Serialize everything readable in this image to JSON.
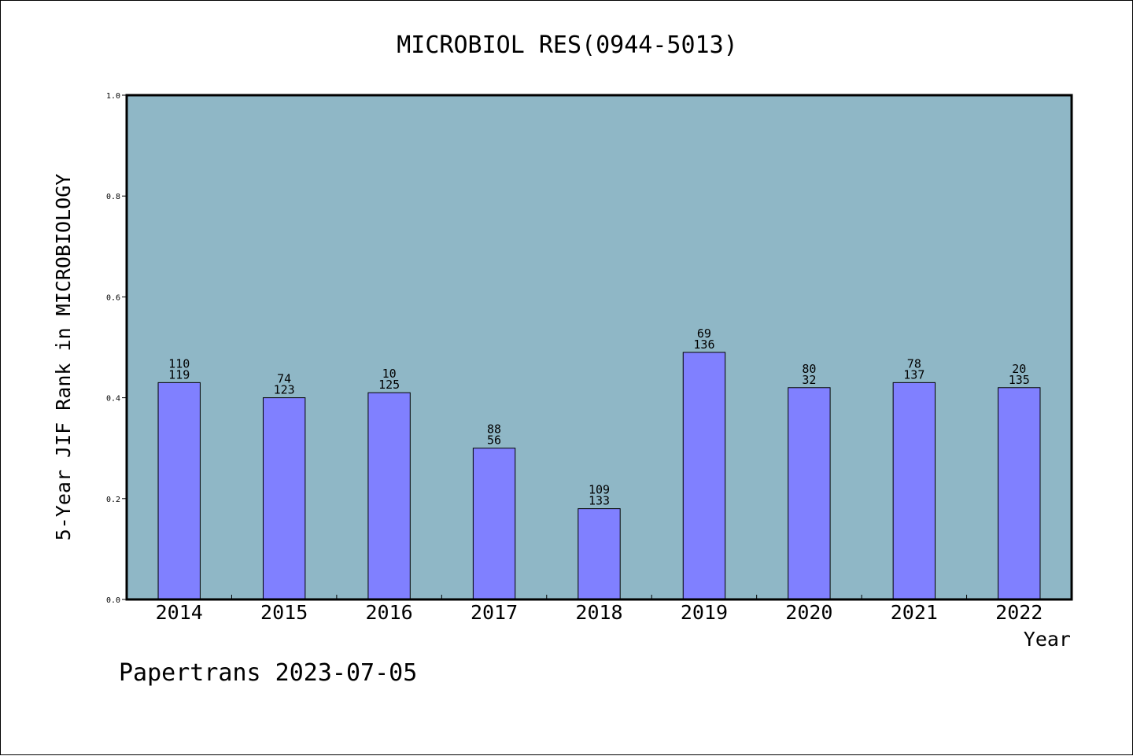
{
  "chart_data": {
    "type": "bar",
    "title": "MICROBIOL RES(0944-5013)",
    "xlabel": "Year",
    "ylabel": "5-Year JIF Rank in MICROBIOLOGY",
    "categories": [
      "2014",
      "2015",
      "2016",
      "2017",
      "2018",
      "2019",
      "2020",
      "2021",
      "2022"
    ],
    "values": [
      0.43,
      0.4,
      0.41,
      0.3,
      0.18,
      0.49,
      0.42,
      0.43,
      0.42
    ],
    "label_top": [
      "110",
      "74",
      "10",
      "88",
      "109",
      "69",
      "80",
      "78",
      "20"
    ],
    "label_bottom": [
      "119",
      "123",
      "125",
      "56",
      "133",
      "136",
      "32",
      "137",
      "135"
    ],
    "ylim": [
      0,
      1.0
    ],
    "yticks": [
      "0.0",
      "0.2",
      "0.4",
      "0.6",
      "0.8",
      "1.0"
    ],
    "grid": false,
    "legend": "none",
    "colors": {
      "plot_background": "#8fb7c6",
      "bar_fill": "#8080ff",
      "bar_stroke": "#000000",
      "axis": "#000000"
    }
  },
  "footer": {
    "text": "Papertrans 2023-07-05"
  }
}
